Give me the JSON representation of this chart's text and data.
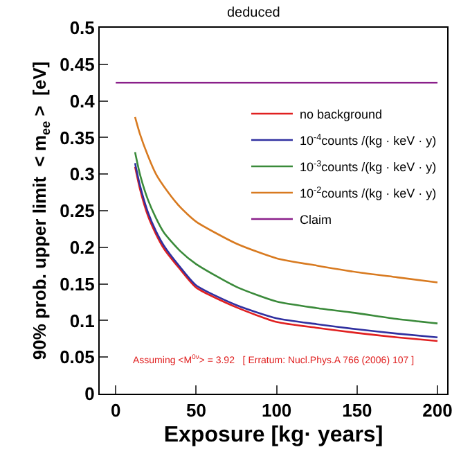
{
  "chart_data": {
    "type": "line",
    "title": "deduced",
    "xlabel": "Exposure [kg· years]",
    "ylabel": "90% prob. upper limit  < m$_{ee}$ >  [eV]",
    "xlim": [
      -10,
      206
    ],
    "xticks": [
      0,
      50,
      100,
      150,
      200
    ],
    "ylim": [
      0,
      0.5
    ],
    "yticks": [
      0,
      0.05,
      0.1,
      0.15,
      0.2,
      0.25,
      0.3,
      0.35,
      0.4,
      0.45,
      0.5
    ],
    "grid": false,
    "legend": "top right",
    "line_style": "solid",
    "marker": "none",
    "annotations": [
      "Assuming <M$^{0ν}$> = 3.92   [ Erratum: Nucl.Phys.A 766 (2006) 107 ]"
    ],
    "series": [
      {
        "name": "no background",
        "color": "#e02020",
        "x": [
          12,
          15,
          20,
          25,
          30,
          40,
          50,
          75,
          100,
          125,
          150,
          175,
          200
        ],
        "values": [
          0.31,
          0.28,
          0.243,
          0.218,
          0.198,
          0.17,
          0.145,
          0.118,
          0.098,
          0.09,
          0.083,
          0.077,
          0.072
        ]
      },
      {
        "name": "10$^{-4}$counts /(kg · keV · y)",
        "color": "#3030a0",
        "x": [
          12,
          15,
          20,
          25,
          30,
          40,
          50,
          75,
          100,
          125,
          150,
          175,
          200
        ],
        "values": [
          0.315,
          0.285,
          0.248,
          0.222,
          0.202,
          0.173,
          0.148,
          0.121,
          0.103,
          0.095,
          0.088,
          0.082,
          0.077
        ]
      },
      {
        "name": "10$^{-3}$counts /(kg · keV · y)",
        "color": "#3a8a3a",
        "x": [
          12,
          15,
          20,
          25,
          30,
          40,
          50,
          75,
          100,
          125,
          150,
          175,
          200
        ],
        "values": [
          0.33,
          0.3,
          0.265,
          0.24,
          0.22,
          0.195,
          0.177,
          0.146,
          0.126,
          0.117,
          0.11,
          0.102,
          0.096
        ]
      },
      {
        "name": "10$^{-2}$counts /(kg · keV · y)",
        "color": "#d87a20",
        "x": [
          12,
          15,
          20,
          25,
          30,
          40,
          50,
          75,
          100,
          125,
          150,
          175,
          200
        ],
        "values": [
          0.378,
          0.355,
          0.325,
          0.3,
          0.283,
          0.255,
          0.235,
          0.205,
          0.185,
          0.175,
          0.166,
          0.159,
          0.152
        ]
      },
      {
        "name": "Claim",
        "color": "#8a1f8a",
        "x": [
          0,
          200
        ],
        "values": [
          0.425,
          0.425
        ]
      }
    ]
  }
}
